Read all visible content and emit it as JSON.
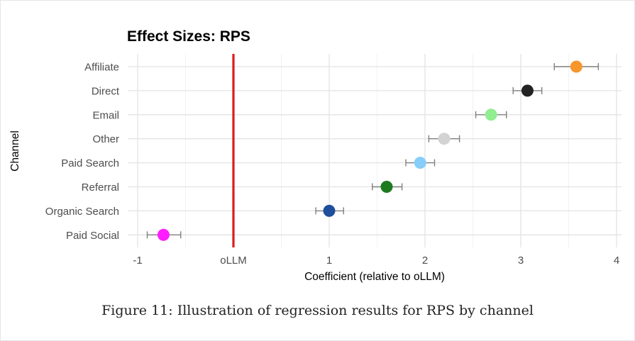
{
  "caption": "Figure 11: Illustration of regression results for RPS by channel",
  "chart_data": {
    "type": "scatter",
    "subtype": "coefficient-plot-with-error-bars",
    "title": "Effect Sizes: RPS",
    "xlabel": "Coefficient (relative to oLLM)",
    "ylabel": "Channel",
    "xlim": [
      -1,
      4
    ],
    "x_ticks": [
      {
        "value": -1,
        "label": "-1"
      },
      {
        "value": 0,
        "label": "oLLM"
      },
      {
        "value": 1,
        "label": "1"
      },
      {
        "value": 2,
        "label": "2"
      },
      {
        "value": 3,
        "label": "3"
      },
      {
        "value": 4,
        "label": "4"
      }
    ],
    "reference_line": {
      "x": 0,
      "color": "#dd1c1c"
    },
    "grid": true,
    "points": [
      {
        "channel": "Affiliate",
        "estimate": 3.58,
        "lower": 3.35,
        "upper": 3.81,
        "color": "#f7962b"
      },
      {
        "channel": "Direct",
        "estimate": 3.07,
        "lower": 2.92,
        "upper": 3.22,
        "color": "#222222"
      },
      {
        "channel": "Email",
        "estimate": 2.69,
        "lower": 2.53,
        "upper": 2.85,
        "color": "#90ee90"
      },
      {
        "channel": "Other",
        "estimate": 2.2,
        "lower": 2.04,
        "upper": 2.36,
        "color": "#d3d3d3"
      },
      {
        "channel": "Paid Search",
        "estimate": 1.95,
        "lower": 1.8,
        "upper": 2.1,
        "color": "#87cefa"
      },
      {
        "channel": "Referral",
        "estimate": 1.6,
        "lower": 1.45,
        "upper": 1.76,
        "color": "#1e7a1e"
      },
      {
        "channel": "Organic Search",
        "estimate": 1.0,
        "lower": 0.86,
        "upper": 1.15,
        "color": "#1f4e9c"
      },
      {
        "channel": "Paid Social",
        "estimate": -0.73,
        "lower": -0.9,
        "upper": -0.55,
        "color": "#ff1cff"
      }
    ]
  }
}
